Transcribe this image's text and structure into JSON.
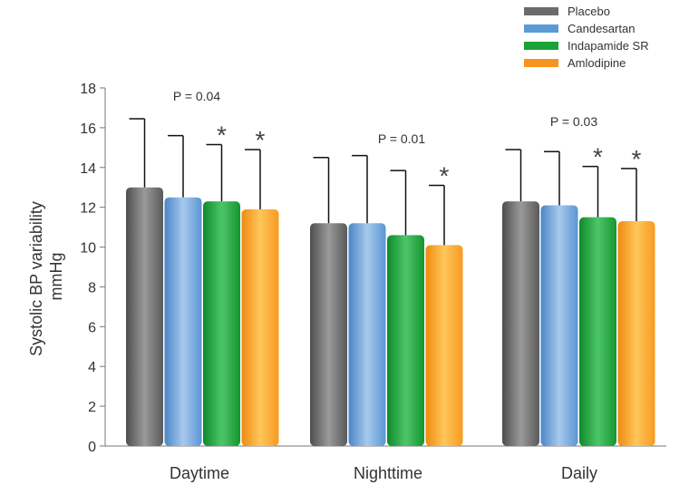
{
  "chart_data": {
    "type": "bar",
    "ylabel_line1": "Systolic BP variability",
    "ylabel_line2": "mmHg",
    "ylim": [
      0,
      18
    ],
    "yticks": [
      0,
      2,
      4,
      6,
      8,
      10,
      12,
      14,
      16,
      18
    ],
    "categories": [
      "Daytime",
      "Nighttime",
      "Daily"
    ],
    "legend_position": "top-right",
    "series": [
      {
        "name": "Placebo",
        "color": "#6b6b6b",
        "values": [
          13.0,
          11.2,
          12.3
        ],
        "errors": [
          3.45,
          3.3,
          2.6
        ]
      },
      {
        "name": "Candesartan",
        "color": "#5b9bd5",
        "values": [
          12.5,
          11.2,
          12.1
        ],
        "errors": [
          3.1,
          3.4,
          2.7
        ]
      },
      {
        "name": "Indapamide SR",
        "color": "#1aa138",
        "values": [
          12.3,
          10.6,
          11.5
        ],
        "errors": [
          2.85,
          3.25,
          2.55
        ]
      },
      {
        "name": "Amlodipine",
        "color": "#f7941d",
        "values": [
          11.9,
          10.1,
          11.3
        ],
        "errors": [
          3.0,
          3.0,
          2.65
        ]
      }
    ],
    "significance": [
      [
        false,
        false,
        true,
        true
      ],
      [
        false,
        false,
        false,
        true
      ],
      [
        false,
        false,
        true,
        true
      ]
    ],
    "star_symbol": "*",
    "p_values": [
      "P = 0.04",
      "P = 0.01",
      "P = 0.03"
    ]
  }
}
